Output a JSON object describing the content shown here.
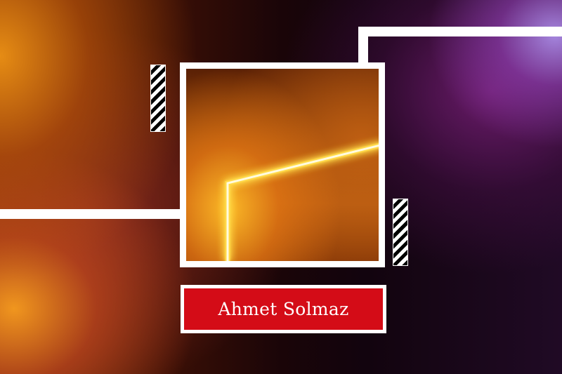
{
  "name_badge": {
    "name": "Ahmet Solmaz",
    "background_color": "#d40c17",
    "text_color": "#ffffff"
  },
  "colors": {
    "frame": "#ffffff",
    "glow_line": "#fff6a0",
    "accent_warm": "#e08a10",
    "accent_cool": "#7a2a8a"
  },
  "photo": {
    "description_icon": "neon-light-line-image"
  }
}
